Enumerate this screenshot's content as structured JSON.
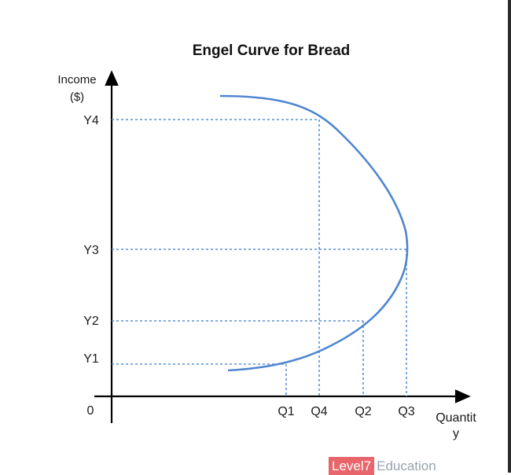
{
  "title": "Engel Curve for Bread",
  "y_axis": {
    "label_line1": "Income",
    "label_line2": "($)"
  },
  "x_axis": {
    "label_line1": "Quantit",
    "label_line2": "y"
  },
  "origin_label": "0",
  "y_ticks": [
    "Y4",
    "Y3",
    "Y2",
    "Y1"
  ],
  "x_ticks": [
    "Q1",
    "Q4",
    "Q2",
    "Q3"
  ],
  "watermark": {
    "brand": "Level7",
    "rest": "Education"
  },
  "colors": {
    "curve": "#4f86cf",
    "guides": "#5a8fd6",
    "axes": "#000000"
  }
}
